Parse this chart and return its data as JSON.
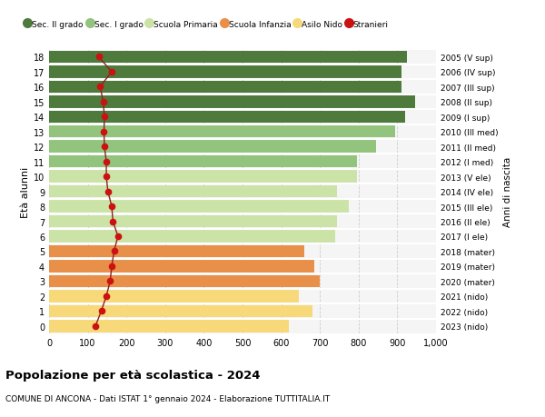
{
  "ages": [
    0,
    1,
    2,
    3,
    4,
    5,
    6,
    7,
    8,
    9,
    10,
    11,
    12,
    13,
    14,
    15,
    16,
    17,
    18
  ],
  "labels_right": [
    "2023 (nido)",
    "2022 (nido)",
    "2021 (nido)",
    "2020 (mater)",
    "2019 (mater)",
    "2018 (mater)",
    "2017 (I ele)",
    "2016 (II ele)",
    "2015 (III ele)",
    "2014 (IV ele)",
    "2013 (V ele)",
    "2012 (I med)",
    "2011 (II med)",
    "2010 (III med)",
    "2009 (I sup)",
    "2008 (II sup)",
    "2007 (III sup)",
    "2006 (IV sup)",
    "2005 (V sup)"
  ],
  "bar_values": [
    620,
    680,
    645,
    700,
    685,
    660,
    740,
    745,
    775,
    745,
    795,
    795,
    845,
    895,
    920,
    945,
    910,
    910,
    925
  ],
  "bar_colors": [
    "#f7d97a",
    "#f7d97a",
    "#f7d97a",
    "#e8904a",
    "#e8904a",
    "#e8904a",
    "#cce3a8",
    "#cce3a8",
    "#cce3a8",
    "#cce3a8",
    "#cce3a8",
    "#93c47d",
    "#93c47d",
    "#93c47d",
    "#4e7a3c",
    "#4e7a3c",
    "#4e7a3c",
    "#4e7a3c",
    "#4e7a3c"
  ],
  "stranieri_values": [
    120,
    135,
    148,
    158,
    162,
    168,
    178,
    165,
    162,
    152,
    148,
    148,
    143,
    142,
    143,
    140,
    132,
    162,
    128
  ],
  "title": "Popolazione per età scolastica - 2024",
  "subtitle": "COMUNE DI ANCONA - Dati ISTAT 1° gennaio 2024 - Elaborazione TUTTITALIA.IT",
  "ylabel": "Età alunni",
  "right_ylabel": "Anni di nascita",
  "xlim_max": 1000,
  "xticks": [
    0,
    100,
    200,
    300,
    400,
    500,
    600,
    700,
    800,
    900,
    1000
  ],
  "xtick_labels": [
    "0",
    "100",
    "200",
    "300",
    "400",
    "500",
    "600",
    "700",
    "800",
    "900",
    "1,000"
  ],
  "legend_labels": [
    "Sec. II grado",
    "Sec. I grado",
    "Scuola Primaria",
    "Scuola Infanzia",
    "Asilo Nido",
    "Stranieri"
  ],
  "legend_colors": [
    "#4e7a3c",
    "#93c47d",
    "#cce3a8",
    "#e8904a",
    "#f7d97a",
    "#cc1111"
  ],
  "grid_color": "#cccccc",
  "background_color": "#ffffff",
  "bar_height": 0.82,
  "stranieri_marker_color": "#cc1111",
  "stranieri_line_color": "#8b2020"
}
